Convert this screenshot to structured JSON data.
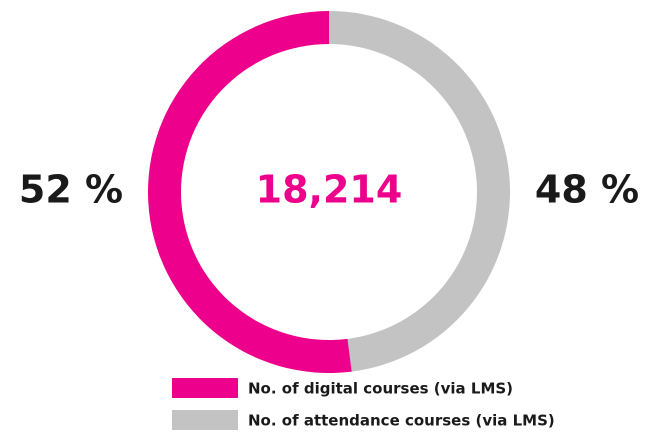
{
  "chart_data": {
    "type": "pie",
    "center_text": "18,214",
    "categories": [
      "No. of digital courses (via LMS)",
      "No. of attendance courses (via LMS)"
    ],
    "values": [
      52,
      48
    ],
    "value_labels": [
      "52 %",
      "48 %"
    ],
    "colors": [
      "#ec008c",
      "#c3c3c3"
    ],
    "center_color": "#ec008c",
    "donut": true
  }
}
